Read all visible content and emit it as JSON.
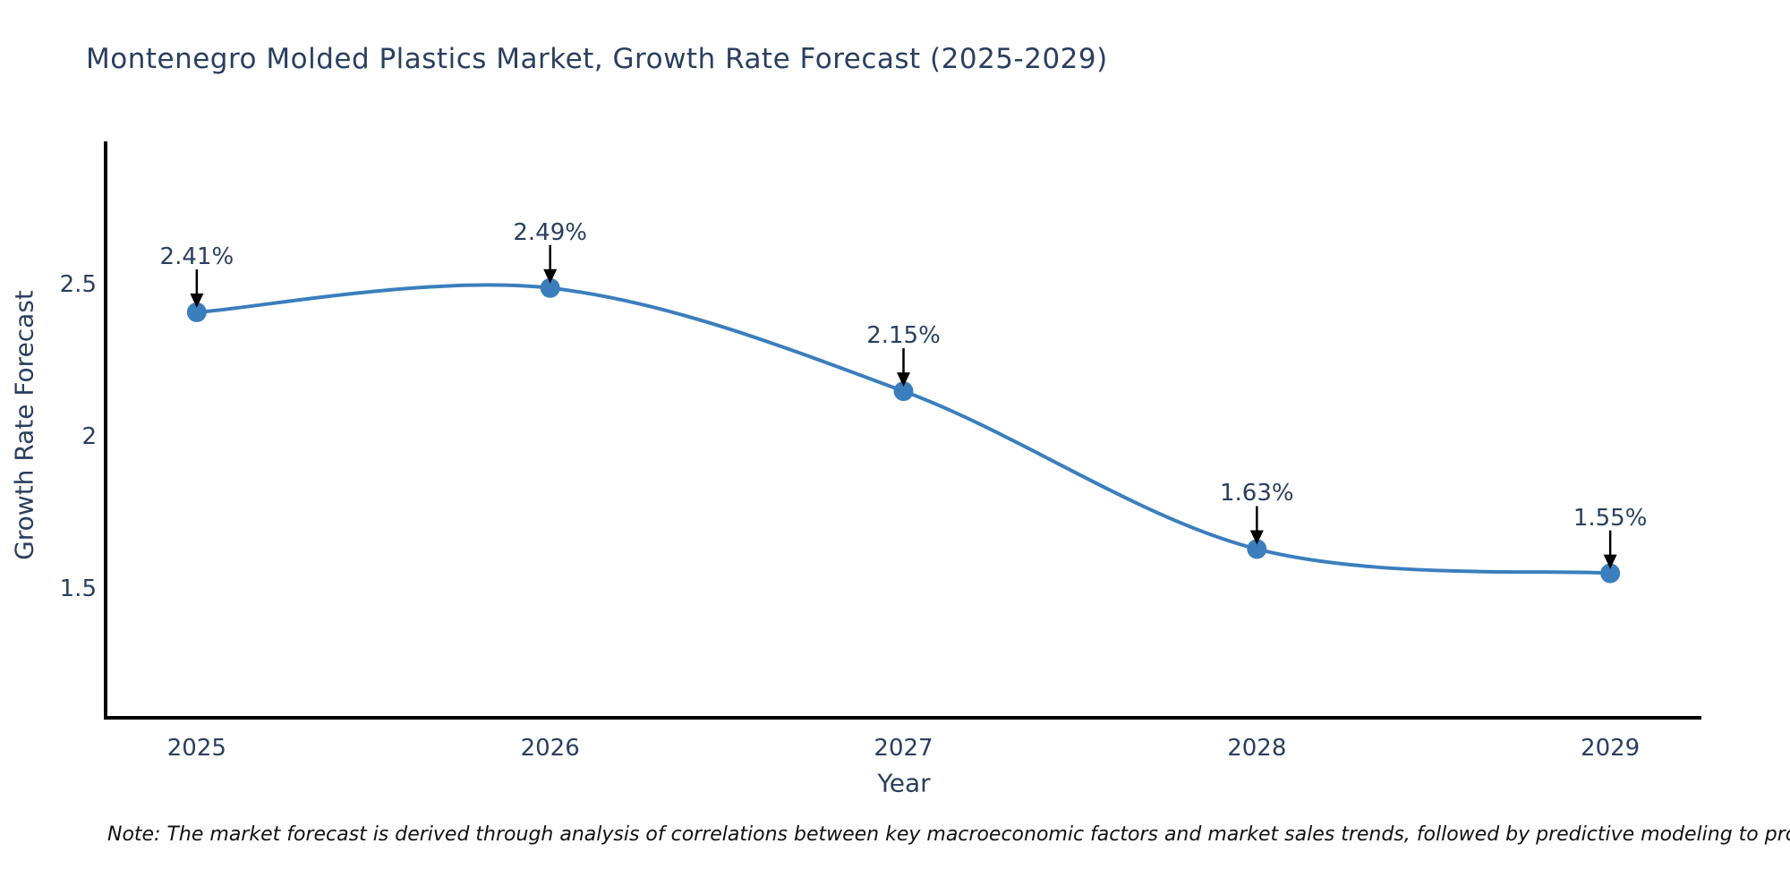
{
  "title": "Montenegro Molded Plastics Market, Growth Rate Forecast (2025-2029)",
  "footnote": "Note: The market forecast is derived through analysis of correlations between key macroeconomic factors and market sales trends, followed by predictive modeling to project future sales",
  "colors": {
    "line": "#3b7ebd",
    "marker": "#3b7ebd",
    "axis_line": "#000000",
    "title_text": "#2a3f5f",
    "axis_text": "#2a3f5f",
    "annotation_text": "#2a3f5f",
    "arrow": "#000000",
    "background": "#ffffff"
  },
  "chart_data": {
    "type": "line",
    "line_shape": "spline",
    "title": "Montenegro Molded Plastics Market, Growth Rate Forecast (2025-2029)",
    "xlabel": "Year",
    "ylabel": "Growth Rate Forecast",
    "x": [
      2025,
      2026,
      2027,
      2028,
      2029
    ],
    "values": [
      2.41,
      2.49,
      2.15,
      1.63,
      1.55
    ],
    "point_labels": [
      "2.41%",
      "2.49%",
      "2.15%",
      "1.63%",
      "1.55%"
    ],
    "xtick_values": [
      2025,
      2026,
      2027,
      2028,
      2029
    ],
    "xtick_labels": [
      "2025",
      "2026",
      "2027",
      "2028",
      "2029"
    ],
    "ytick_values": [
      1.5,
      2,
      2.5
    ],
    "ytick_labels": [
      "1.5",
      "2",
      "2.5"
    ],
    "xlim": [
      2024.742,
      2029.258
    ],
    "ylim": [
      1.074,
      2.973
    ],
    "grid": false,
    "legend": false,
    "annotations_have_arrows": true
  }
}
